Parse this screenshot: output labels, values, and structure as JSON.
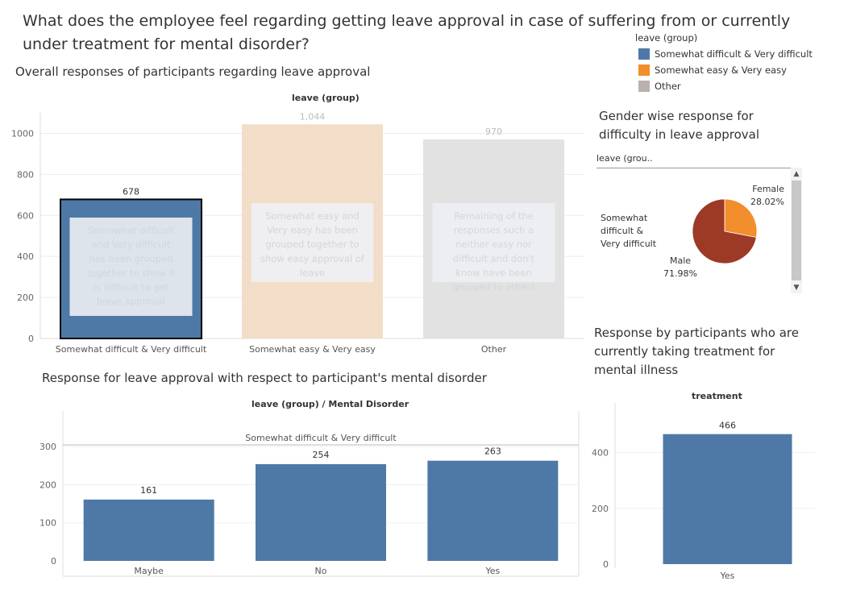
{
  "page": {
    "title": "What does the employee feel regarding getting leave approval in case of suffering from or currently under treatment for mental disorder?"
  },
  "legend": {
    "title": "leave (group)",
    "items": [
      {
        "label": "Somewhat difficult & Very difficult",
        "color": "#4e79a7"
      },
      {
        "label": "Somewhat easy & Very easy",
        "color": "#f28e2b"
      },
      {
        "label": "Other",
        "color": "#bab0ac"
      }
    ]
  },
  "overall": {
    "section_title": "Overall responses of participants regarding leave approval",
    "header": "leave (group)"
  },
  "gender": {
    "section_title_1": "Gender wise response for",
    "section_title_2": "difficulty in leave approval",
    "filter_label": "leave (grou..",
    "row_label_1": "Somewhat",
    "row_label_2": "difficult &",
    "row_label_3": "Very difficult"
  },
  "disorder": {
    "section_title": "Response for leave approval with respect to participant's mental disorder",
    "header": "leave (group)  /  Mental Disorder",
    "pane_label": "Somewhat difficult & Very difficult"
  },
  "treatment": {
    "section_title_1": "Response by participants who are",
    "section_title_2": "currently taking treatment for",
    "section_title_3": "mental illness",
    "header": "treatment"
  },
  "chart_data": [
    {
      "type": "bar",
      "title": "Overall responses of participants regarding leave approval",
      "xlabel": "leave (group)",
      "categories": [
        "Somewhat difficult & Very difficult",
        "Somewhat easy & Very easy",
        "Other"
      ],
      "values": [
        678,
        1044,
        970
      ],
      "value_labels": [
        "678",
        "1,044",
        "970"
      ],
      "colors": [
        "#4e79a7",
        "#f2ddc8",
        "#e2e2e2"
      ],
      "ylim": [
        0,
        1100
      ],
      "yticks": [
        0,
        200,
        400,
        600,
        800,
        1000
      ],
      "annotations": [
        "Somewhat difficult and Very difficult has been grouped together to show it is difficult to get leave approval",
        "Somewhat easy and Very easy has been grouped together to show easy approval of leave",
        "Remaining of the responses such a neither easy nor difficult and don't know have been grouped to others"
      ],
      "grid": true
    },
    {
      "type": "pie",
      "title": "Gender wise response for difficulty in leave approval",
      "categories": [
        "Female",
        "Male"
      ],
      "values": [
        28.02,
        71.98
      ],
      "value_labels": [
        "28.02%",
        "71.98%"
      ],
      "colors": [
        "#f28e2b",
        "#9c3a26"
      ]
    },
    {
      "type": "bar",
      "title": "Response for leave approval with respect to participant's mental disorder",
      "xlabel": "leave (group)  /  Mental Disorder",
      "categories": [
        "Maybe",
        "No",
        "Yes"
      ],
      "values": [
        161,
        254,
        263
      ],
      "color": "#4e79a7",
      "ylim": [
        0,
        330
      ],
      "yticks": [
        0,
        100,
        200,
        300
      ],
      "grid": true
    },
    {
      "type": "bar",
      "title": "Response by participants who are currently taking treatment for mental illness",
      "xlabel": "treatment",
      "categories": [
        "Yes"
      ],
      "values": [
        466
      ],
      "color": "#4e79a7",
      "ylim": [
        0,
        520
      ],
      "yticks": [
        0,
        200,
        400
      ],
      "grid": true
    }
  ]
}
